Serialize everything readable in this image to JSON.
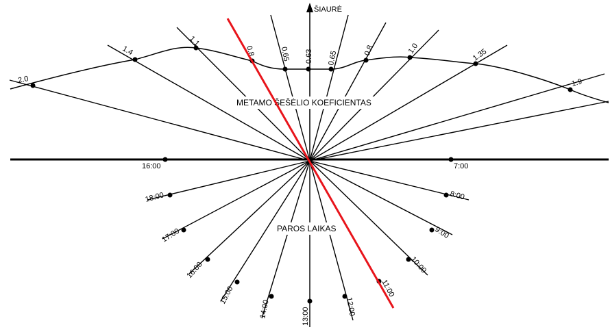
{
  "north_label": "ŠIAURĖ",
  "upper_caption": "METAMO ŠEŠĖLIO KOEFICIENTAS",
  "lower_caption": "PAROS LAIKAS",
  "horizon_times": [
    "16:00",
    "7:00"
  ],
  "shadow_coefficients": [
    "2.0",
    "1.4",
    "1.1",
    "0.8",
    "0.65",
    "0.63",
    "0.65",
    "0.8",
    "1.0",
    "1.35",
    "1.9"
  ],
  "day_times": [
    "18:00",
    "17:00",
    "16:00",
    "15:00",
    "14:00",
    "13:00",
    "12:00",
    "11:00",
    "10:00",
    "9:00",
    "8:00"
  ],
  "colors": {
    "lines": "#000000",
    "highlight": "#e8141b",
    "background": "#ffffff"
  }
}
